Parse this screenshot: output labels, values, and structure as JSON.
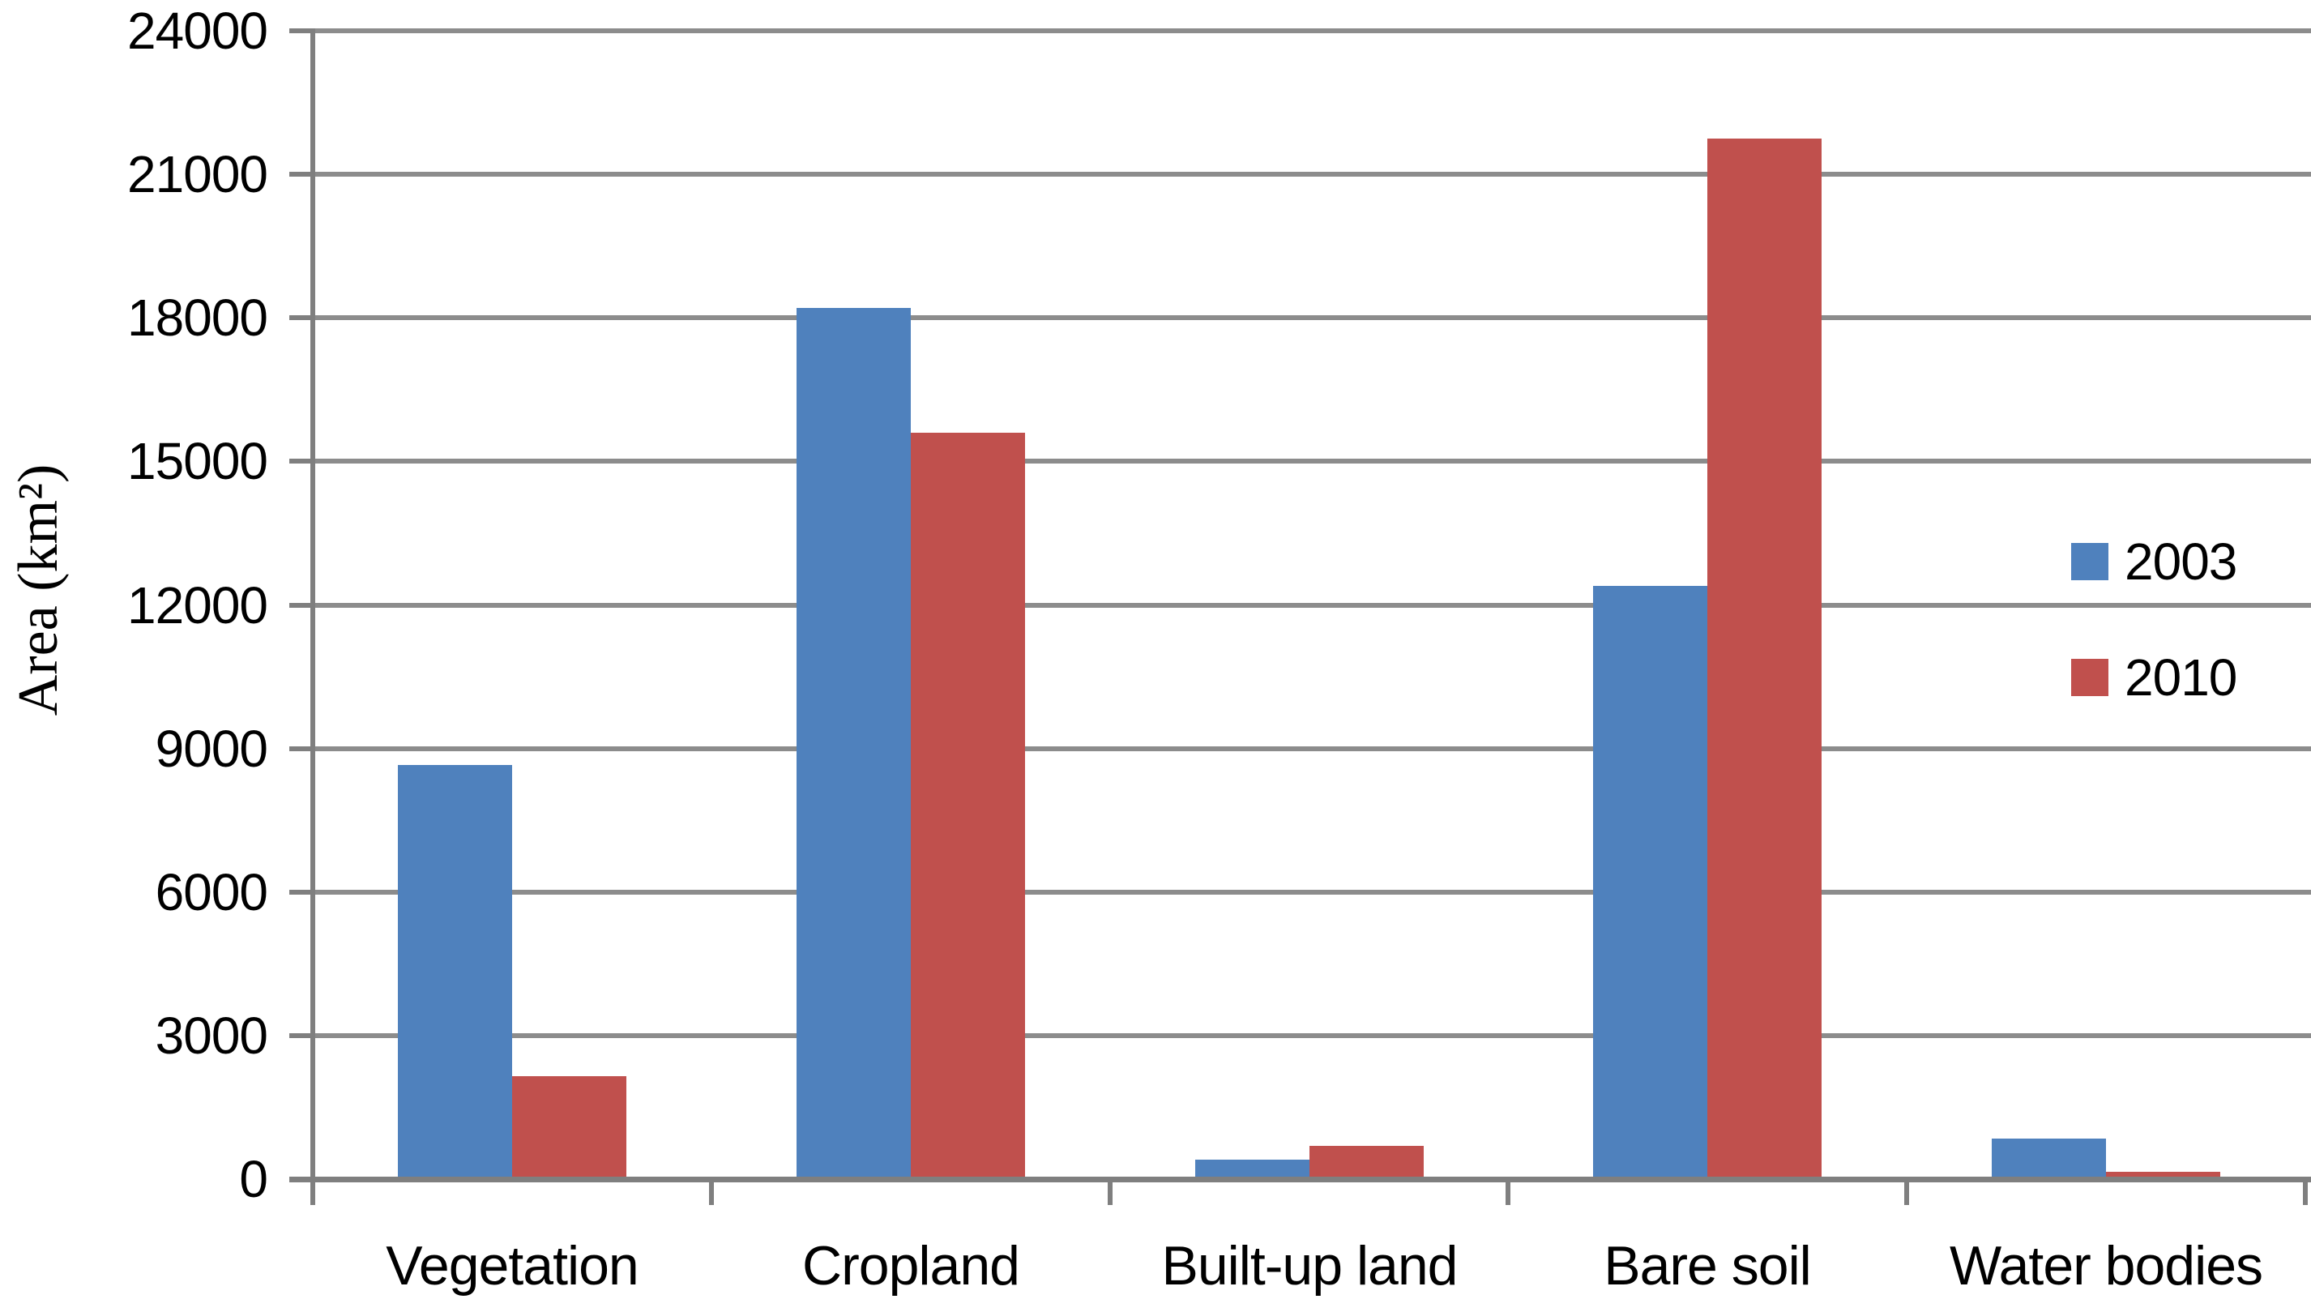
{
  "chart_data": {
    "type": "bar",
    "title": "",
    "categories": [
      "Vegetation",
      "Cropland",
      "Built-up land",
      "Bare soil",
      "Water bodies"
    ],
    "series": [
      {
        "name": "2003",
        "color": "#4F81BD",
        "values": [
          8650,
          18200,
          400,
          12400,
          850
        ]
      },
      {
        "name": "2010",
        "color": "#C0504D",
        "values": [
          2150,
          15600,
          700,
          21750,
          150
        ]
      }
    ],
    "xlabel": "",
    "ylabel": "Area (km²)",
    "ylim": [
      0,
      24000
    ],
    "ytick_step": 3000,
    "yticks": [
      0,
      3000,
      6000,
      9000,
      12000,
      15000,
      18000,
      21000,
      24000
    ],
    "grid": true,
    "legend": {
      "position": "right-inside",
      "entries": [
        "2003",
        "2010"
      ]
    }
  },
  "colors": {
    "series_2003": "#4F81BD",
    "series_2010": "#C0504D",
    "gridline": "#8C8C8C",
    "axis": "#7F7F7F",
    "text": "#000000",
    "background": "#FFFFFF"
  }
}
